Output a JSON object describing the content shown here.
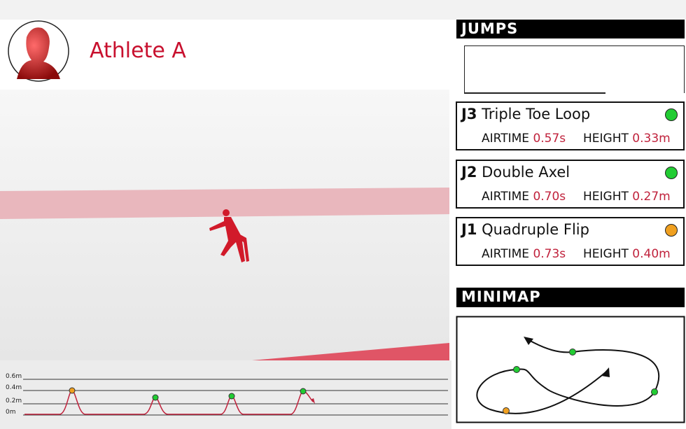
{
  "header": {
    "athlete": "Athlete A"
  },
  "jumps": {
    "title": "JUMPS",
    "items": [
      {
        "code": "J3",
        "name": "Triple Toe Loop",
        "airtime_label": "AIRTIME",
        "airtime": "0.57s",
        "height_label": "HEIGHT",
        "height": "0.33m"
      },
      {
        "code": "J2",
        "name": "Double Axel",
        "airtime_label": "AIRTIME",
        "airtime": "0.70s",
        "height_label": "HEIGHT",
        "height": "0.27m"
      },
      {
        "code": "J1",
        "name": "Quadruple Flip",
        "airtime_label": "AIRTIME",
        "airtime": "0.73s",
        "height_label": "HEIGHT",
        "height": "0.40m"
      }
    ]
  },
  "minimap": {
    "title": "MINIMAP"
  },
  "height_graph": {
    "yticks": [
      "0.6m",
      "0.4m",
      "0.2m",
      "0m"
    ]
  }
}
